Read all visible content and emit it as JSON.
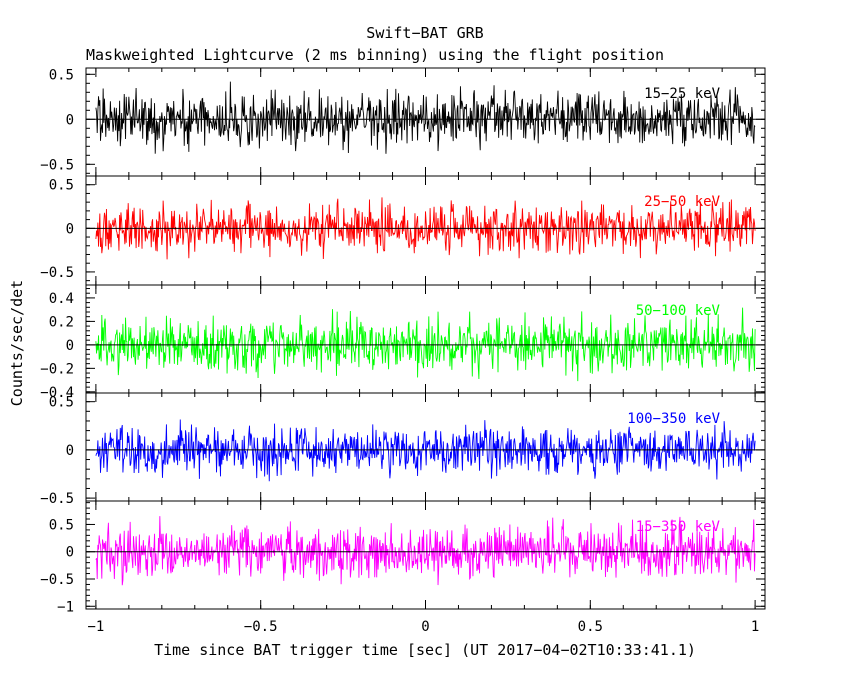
{
  "chart_data": {
    "type": "line",
    "title": "Swift−BAT GRB",
    "subtitle": "Maskweighted Lightcurve (2 ms binning) using the flight position",
    "xlabel": "Time since BAT trigger time [sec] (UT 2017−04−02T10:33:41.1)",
    "ylabel": "Counts/sec/det",
    "xlim": [
      -1.03,
      1.03
    ],
    "x_ticks": [
      -1,
      -0.5,
      0,
      0.5,
      1
    ],
    "x_tick_labels": [
      "−1",
      "−0.5",
      "0",
      "0.5",
      "1"
    ],
    "grid": false,
    "panels": [
      {
        "band": "15−25 keV",
        "color": "#000000",
        "ylim": [
          -0.63,
          0.57
        ],
        "y_ticks": [
          -0.5,
          0,
          0.5
        ],
        "y_tick_labels": [
          "−0.5",
          "0",
          "0.5"
        ],
        "noise_amplitude": 0.22
      },
      {
        "band": "25−50 keV",
        "color": "#ff0000",
        "ylim": [
          -0.65,
          0.6
        ],
        "y_ticks": [
          -0.5,
          0,
          0.5
        ],
        "y_tick_labels": [
          "−0.5",
          "0",
          "0.5"
        ],
        "noise_amplitude": 0.2
      },
      {
        "band": "50−100 keV",
        "color": "#00ff00",
        "ylim": [
          -0.41,
          0.51
        ],
        "y_ticks": [
          -0.4,
          -0.2,
          0,
          0.2,
          0.4
        ],
        "y_tick_labels": [
          "−0.4",
          "−0.2",
          "0",
          "0.2",
          "0.4"
        ],
        "noise_amplitude": 0.17
      },
      {
        "band": "100−350 keV",
        "color": "#0000ff",
        "ylim": [
          -0.53,
          0.59
        ],
        "y_ticks": [
          -0.5,
          0,
          0.5
        ],
        "y_tick_labels": [
          "−0.5",
          "0",
          "0.5"
        ],
        "noise_amplitude": 0.18
      },
      {
        "band": "15−350 keV",
        "color": "#ff00ff",
        "ylim": [
          -1.05,
          0.93
        ],
        "y_ticks": [
          -1,
          -0.5,
          0,
          0.5
        ],
        "y_tick_labels": [
          "−1",
          "−0.5",
          "0",
          "0.5"
        ],
        "noise_amplitude": 0.35
      }
    ],
    "series_time_range": [
      -1,
      1
    ],
    "bin_width_sec": 0.002
  }
}
